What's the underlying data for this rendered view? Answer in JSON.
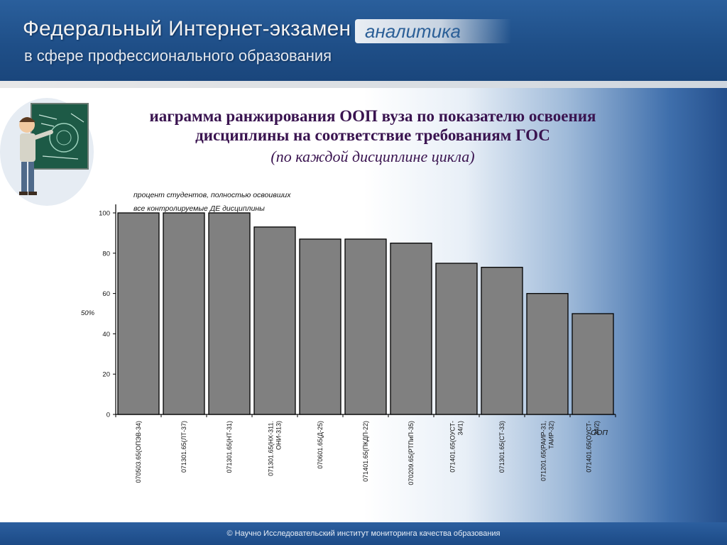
{
  "header": {
    "title": "Федеральный Интернет-экзамен",
    "subtitle": "в сфере профессионального образования",
    "badge": "аналитика"
  },
  "slide": {
    "title_line1": "иаграмма ранжирования ООП вуза по показателю освоения",
    "title_line2": "дисциплины на соответствие требованиям ГОС",
    "subtitle": "(по каждой дисциплине цикла)"
  },
  "chart_data": {
    "type": "bar",
    "ylabel_line1": "процент студентов, полностью освоивших",
    "ylabel_line2": "все контролируемые ДЕ дисциплины",
    "ylim": [
      0,
      100
    ],
    "yticks": [
      "0",
      "20",
      "40",
      "60",
      "80",
      "100"
    ],
    "reference_label": "50%",
    "categories": [
      [
        "070503.65(ОПЭВ-34)"
      ],
      [
        "071301.65(ЛТ-37)"
      ],
      [
        "071301.65(НТ-31)"
      ],
      [
        "071301.65(НХ-311.",
        "ОНИ-313)"
      ],
      [
        "070601.65(Д-25)"
      ],
      [
        "071401.65(ПКДП-22)"
      ],
      [
        "070209.65(РТПиП-35)"
      ],
      [
        "071401.65(ОУСТ-",
        "34/1)"
      ],
      [
        "071301.65(СТ-33)"
      ],
      [
        "071201.65(РАИР-31,",
        "ТАИР-32)"
      ],
      [
        "071401.65(ОУСТ-",
        "34/2)"
      ]
    ],
    "values": [
      100,
      100,
      100,
      93,
      87,
      87,
      85,
      75,
      73,
      60,
      50
    ],
    "xlabel": "ООП",
    "bar_color": "#808080",
    "grid": false,
    "legend": "none"
  },
  "footer": {
    "text": "© Научно Исследовательский институт мониторинга качества образования"
  }
}
